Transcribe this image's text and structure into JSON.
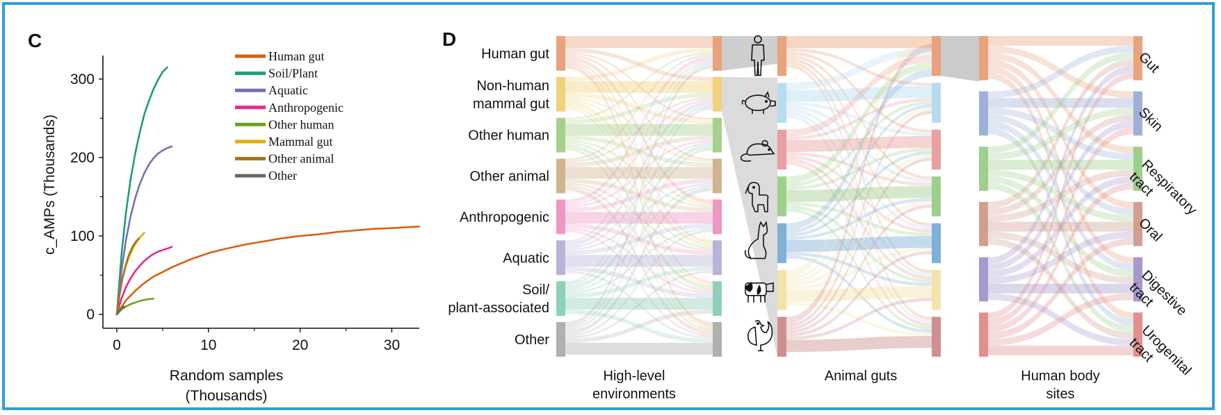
{
  "panel_c": {
    "letter": "C"
  },
  "panel_d": {
    "letter": "D"
  },
  "colors": {
    "frame": "#2e9fd8",
    "human_gut": "#d95f0e",
    "soil_plant": "#1b9e77",
    "aquatic": "#7570b3",
    "anthropogenic": "#e7298a",
    "other_human": "#66a61e",
    "mammal_gut": "#e6ab02",
    "other_animal": "#a6761d",
    "other": "#666666"
  },
  "chart_data": [
    {
      "type": "line",
      "xlabel": "Random samples",
      "xlabel_unit": "(Thousands)",
      "ylabel": "c_AMPs (Thousands)",
      "xlim": [
        0,
        33
      ],
      "ylim": [
        0,
        330
      ],
      "xticks": [
        "0",
        "10",
        "20",
        "30"
      ],
      "yticks": [
        "0",
        "100",
        "200",
        "300"
      ],
      "legend_position": "top-right",
      "series": [
        {
          "name": "Human gut",
          "color": "#d95f0e",
          "x": [
            0,
            1,
            2,
            3,
            4,
            6,
            8,
            10,
            12,
            14,
            16,
            18,
            20,
            22,
            24,
            26,
            28,
            30,
            33
          ],
          "y": [
            0,
            18,
            30,
            40,
            48,
            60,
            70,
            78,
            84,
            89,
            93,
            97,
            100,
            102,
            105,
            107,
            109,
            110,
            112
          ]
        },
        {
          "name": "Soil/Plant",
          "color": "#1b9e77",
          "x": [
            0,
            0.5,
            1,
            1.5,
            2,
            2.5,
            3,
            3.5,
            4,
            4.5,
            5,
            5.5
          ],
          "y": [
            0,
            75,
            130,
            172,
            205,
            232,
            255,
            272,
            287,
            299,
            309,
            315
          ]
        },
        {
          "name": "Aquatic",
          "color": "#7570b3",
          "x": [
            0,
            0.5,
            1,
            1.5,
            2,
            2.5,
            3,
            3.5,
            4,
            4.5,
            5,
            5.5,
            6
          ],
          "y": [
            0,
            55,
            95,
            125,
            148,
            166,
            180,
            191,
            199,
            205,
            209,
            212,
            214
          ]
        },
        {
          "name": "Anthropogenic",
          "color": "#e7298a",
          "x": [
            0,
            0.5,
            1,
            1.5,
            2,
            2.5,
            3,
            3.5,
            4,
            4.5,
            5,
            5.5,
            6
          ],
          "y": [
            0,
            20,
            35,
            46,
            55,
            62,
            68,
            73,
            77,
            80,
            82,
            84,
            86
          ]
        },
        {
          "name": "Other human",
          "color": "#66a61e",
          "x": [
            0,
            0.5,
            1,
            1.5,
            2,
            2.5,
            3,
            3.5,
            4
          ],
          "y": [
            0,
            6,
            10,
            13,
            15,
            17,
            18.5,
            19.5,
            20
          ]
        },
        {
          "name": "Mammal gut",
          "color": "#e6ab02",
          "x": [
            0,
            0.3,
            0.6,
            1,
            1.4,
            1.8,
            2.2,
            2.6,
            3
          ],
          "y": [
            0,
            25,
            45,
            62,
            75,
            85,
            93,
            99,
            104
          ]
        },
        {
          "name": "Other animal",
          "color": "#a6761d",
          "x": [
            0,
            0.3,
            0.6,
            0.9,
            1.2,
            1.5,
            1.8,
            2.1,
            2.4
          ],
          "y": [
            0,
            25,
            45,
            60,
            72,
            81,
            88,
            93,
            97
          ]
        },
        {
          "name": "Other",
          "color": "#666666",
          "x": [
            0,
            0.2,
            0.4,
            0.6,
            0.8
          ],
          "y": [
            0,
            4,
            7,
            9,
            10
          ]
        }
      ]
    },
    {
      "type": "sankey",
      "columns": [
        {
          "title": "High-level\nenvironments",
          "title_lines": [
            "High-level",
            "environments"
          ]
        },
        {
          "title": "Animal guts",
          "title_lines": [
            "Animal guts"
          ]
        },
        {
          "title": "Human body\nsites",
          "title_lines": [
            "Human body",
            "sites"
          ]
        }
      ],
      "env_nodes": [
        {
          "label_lines": [
            "Human gut"
          ],
          "color": "#e8a27c"
        },
        {
          "label_lines": [
            "Non-human",
            "mammal gut"
          ],
          "color": "#f0d27a"
        },
        {
          "label_lines": [
            "Other human"
          ],
          "color": "#a8cf8c"
        },
        {
          "label_lines": [
            "Other animal"
          ],
          "color": "#cfb48f"
        },
        {
          "label_lines": [
            "Anthropogenic"
          ],
          "color": "#ec97c4"
        },
        {
          "label_lines": [
            "Aquatic"
          ],
          "color": "#b8b4d9"
        },
        {
          "label_lines": [
            "Soil/",
            "plant-associated"
          ],
          "color": "#8fd0b8"
        },
        {
          "label_lines": [
            "Other"
          ],
          "color": "#b0b0b0"
        }
      ],
      "animal_icons": [
        "human",
        "pig",
        "rat",
        "dog",
        "cat",
        "cow",
        "chicken"
      ],
      "animal_nodes": [
        {
          "color": "#e8a27c"
        },
        {
          "color": "#b7dcef"
        },
        {
          "color": "#e8a0a0"
        },
        {
          "color": "#9fcf8c"
        },
        {
          "color": "#7fb0d8"
        },
        {
          "color": "#f3e3ab"
        },
        {
          "color": "#cf8f8f"
        }
      ],
      "body_left_nodes": [
        {
          "color": "#e8a27c"
        },
        {
          "color": "#9fb0d8"
        },
        {
          "color": "#9fcf8c"
        },
        {
          "color": "#cfa090"
        },
        {
          "color": "#a898cc"
        },
        {
          "color": "#e09090"
        }
      ],
      "body_sites": [
        {
          "label_lines": [
            "Gut"
          ],
          "color": "#e8a27c"
        },
        {
          "label_lines": [
            "Skin"
          ],
          "color": "#9fb0d8"
        },
        {
          "label_lines": [
            "Respiratory",
            "tract"
          ],
          "color": "#9fcf8c"
        },
        {
          "label_lines": [
            "Oral"
          ],
          "color": "#cfa090"
        },
        {
          "label_lines": [
            "Digestive",
            "tract"
          ],
          "color": "#a898cc"
        },
        {
          "label_lines": [
            "Urogenital",
            "tract"
          ],
          "color": "#e09090"
        }
      ]
    }
  ]
}
